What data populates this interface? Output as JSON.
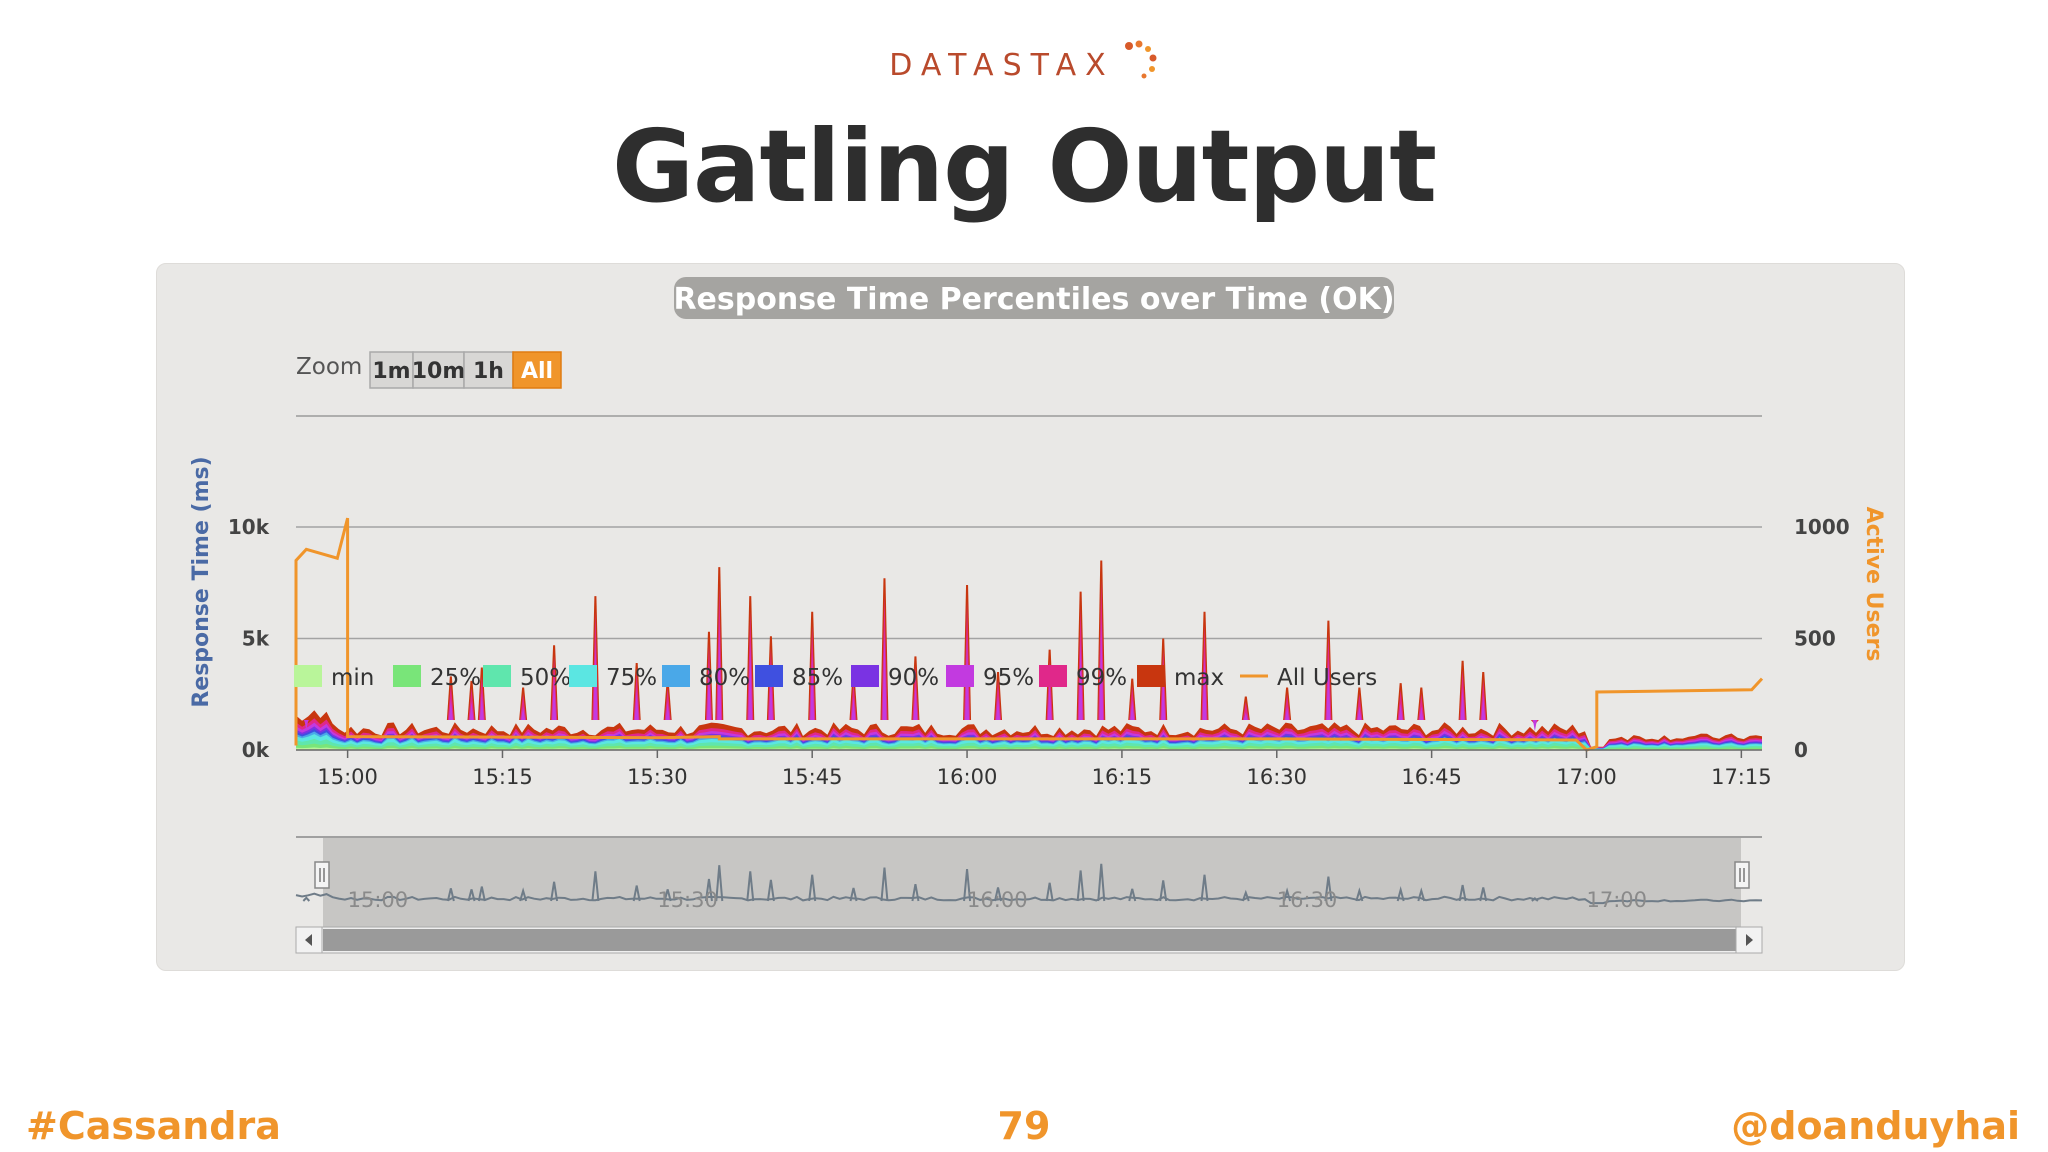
{
  "brand": {
    "logo_text": "DATASTAX"
  },
  "slide": {
    "title": "Gatling Output",
    "page_number": "79"
  },
  "footer": {
    "left": "#Cassandra",
    "right": "@doanduyhai"
  },
  "colors": {
    "accent": "#f0952b",
    "title": "#2e2e2e",
    "brand": "#b94a2c"
  },
  "zoom": {
    "label": "Zoom",
    "buttons": [
      {
        "label": "1m",
        "active": false
      },
      {
        "label": "10m",
        "active": false
      },
      {
        "label": "1h",
        "active": false
      },
      {
        "label": "All",
        "active": true
      }
    ]
  },
  "chart_data": {
    "type": "area",
    "title": "Response Time Percentiles over Time (OK)",
    "ylabel": "Response Time (ms)",
    "y2label": "Active Users",
    "ylim": [
      0,
      10000
    ],
    "y2lim": [
      0,
      1000
    ],
    "y_ticks": [
      "0k",
      "5k",
      "10k"
    ],
    "y2_ticks": [
      "0",
      "500",
      "1000"
    ],
    "x_start": "14:55",
    "x_end": "17:17",
    "x_ticks": [
      "15:00",
      "15:15",
      "15:30",
      "15:45",
      "16:00",
      "16:15",
      "16:30",
      "16:45",
      "17:00",
      "17:15"
    ],
    "grid": true,
    "legend_position": "bottom",
    "legend": [
      {
        "name": "min",
        "color": "#b9f59a",
        "kind": "box"
      },
      {
        "name": "25%",
        "color": "#79e579",
        "kind": "box"
      },
      {
        "name": "50%",
        "color": "#5fe6ad",
        "kind": "box"
      },
      {
        "name": "75%",
        "color": "#5be6e2",
        "kind": "box"
      },
      {
        "name": "80%",
        "color": "#4aa8e8",
        "kind": "box"
      },
      {
        "name": "85%",
        "color": "#3f50e0",
        "kind": "box"
      },
      {
        "name": "90%",
        "color": "#7a33e3",
        "kind": "box"
      },
      {
        "name": "95%",
        "color": "#c23ae0",
        "kind": "box"
      },
      {
        "name": "99%",
        "color": "#e0288a",
        "kind": "box"
      },
      {
        "name": "max",
        "color": "#c8360f",
        "kind": "box"
      },
      {
        "name": "All Users",
        "color": "#f0952b",
        "kind": "line"
      }
    ],
    "max_spikes": [
      {
        "t": "14:56",
        "v": 1300
      },
      {
        "t": "15:10",
        "v": 3300
      },
      {
        "t": "15:12",
        "v": 3100
      },
      {
        "t": "15:13",
        "v": 3700
      },
      {
        "t": "15:17",
        "v": 2800
      },
      {
        "t": "15:20",
        "v": 4700
      },
      {
        "t": "15:24",
        "v": 6900
      },
      {
        "t": "15:28",
        "v": 3900
      },
      {
        "t": "15:31",
        "v": 3100
      },
      {
        "t": "15:35",
        "v": 5300
      },
      {
        "t": "15:36",
        "v": 8200
      },
      {
        "t": "15:39",
        "v": 6900
      },
      {
        "t": "15:41",
        "v": 5100
      },
      {
        "t": "15:45",
        "v": 6200
      },
      {
        "t": "15:49",
        "v": 3400
      },
      {
        "t": "15:52",
        "v": 7700
      },
      {
        "t": "15:55",
        "v": 4200
      },
      {
        "t": "16:00",
        "v": 7400
      },
      {
        "t": "16:03",
        "v": 3500
      },
      {
        "t": "16:08",
        "v": 4500
      },
      {
        "t": "16:11",
        "v": 7100
      },
      {
        "t": "16:13",
        "v": 8500
      },
      {
        "t": "16:16",
        "v": 3200
      },
      {
        "t": "16:19",
        "v": 5000
      },
      {
        "t": "16:23",
        "v": 6200
      },
      {
        "t": "16:27",
        "v": 2400
      },
      {
        "t": "16:31",
        "v": 2800
      },
      {
        "t": "16:35",
        "v": 5800
      },
      {
        "t": "16:38",
        "v": 2800
      },
      {
        "t": "16:42",
        "v": 3000
      },
      {
        "t": "16:44",
        "v": 2800
      },
      {
        "t": "16:48",
        "v": 4000
      },
      {
        "t": "16:50",
        "v": 3500
      },
      {
        "t": "16:55",
        "v": 1200
      }
    ],
    "all_users": [
      {
        "t": "14:55",
        "v": 20
      },
      {
        "t": "14:55",
        "v": 850
      },
      {
        "t": "14:56",
        "v": 900
      },
      {
        "t": "14:59",
        "v": 860
      },
      {
        "t": "15:00",
        "v": 1040
      },
      {
        "t": "15:00",
        "v": 60
      },
      {
        "t": "15:30",
        "v": 55
      },
      {
        "t": "15:36",
        "v": 60
      },
      {
        "t": "15:36",
        "v": 50
      },
      {
        "t": "16:30",
        "v": 50
      },
      {
        "t": "16:59",
        "v": 45
      },
      {
        "t": "17:00",
        "v": 0
      },
      {
        "t": "17:01",
        "v": 15
      },
      {
        "t": "17:01",
        "v": 260
      },
      {
        "t": "17:16",
        "v": 270
      },
      {
        "t": "17:17",
        "v": 320
      }
    ],
    "navigator_ticks": [
      "15:00",
      "15:30",
      "16:00",
      "16:30",
      "17:00"
    ]
  }
}
